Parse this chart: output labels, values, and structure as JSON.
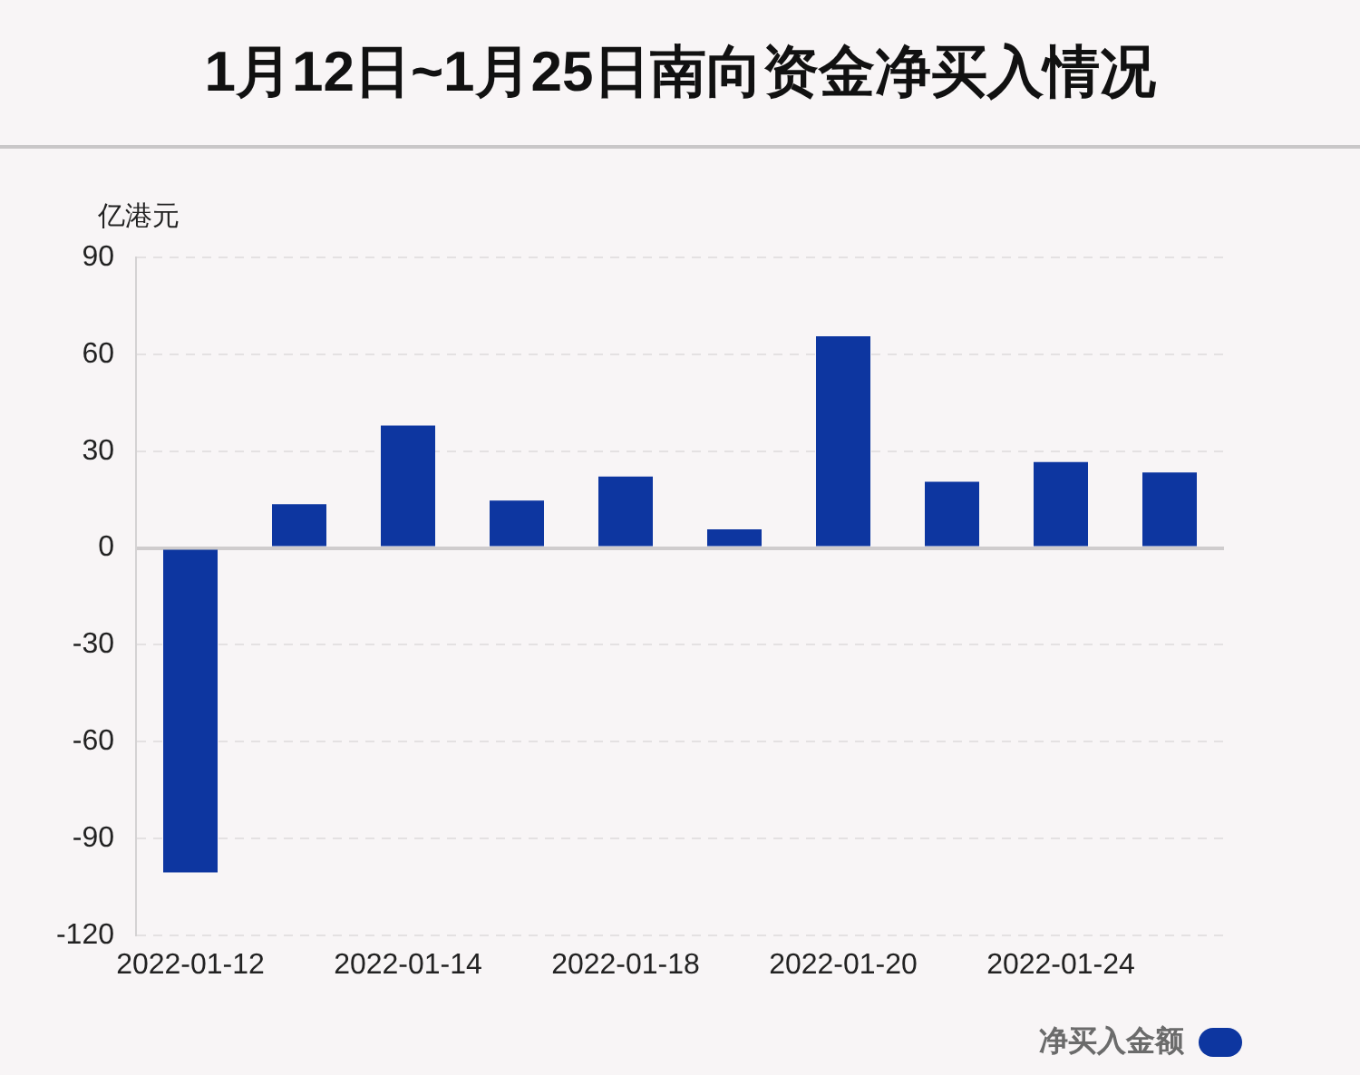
{
  "chart_data": {
    "type": "bar",
    "title": "1月12日~1月25日南向资金净买入情况",
    "ylabel": "亿港元",
    "categories": [
      "2022-01-12",
      null,
      "2022-01-14",
      null,
      "2022-01-18",
      null,
      "2022-01-20",
      null,
      "2022-01-24",
      null
    ],
    "series": [
      {
        "name": "净买入金额",
        "color": "#0d36a0",
        "values": [
          -100.5,
          13.6,
          37.9,
          14.7,
          22.1,
          5.8,
          65.6,
          20.5,
          26.6,
          23.4
        ]
      }
    ],
    "ylim": [
      -120,
      90
    ],
    "yticks": [
      -120,
      -90,
      -60,
      -30,
      0,
      30,
      60,
      90
    ],
    "grid": "y",
    "legend": "bottom right"
  }
}
